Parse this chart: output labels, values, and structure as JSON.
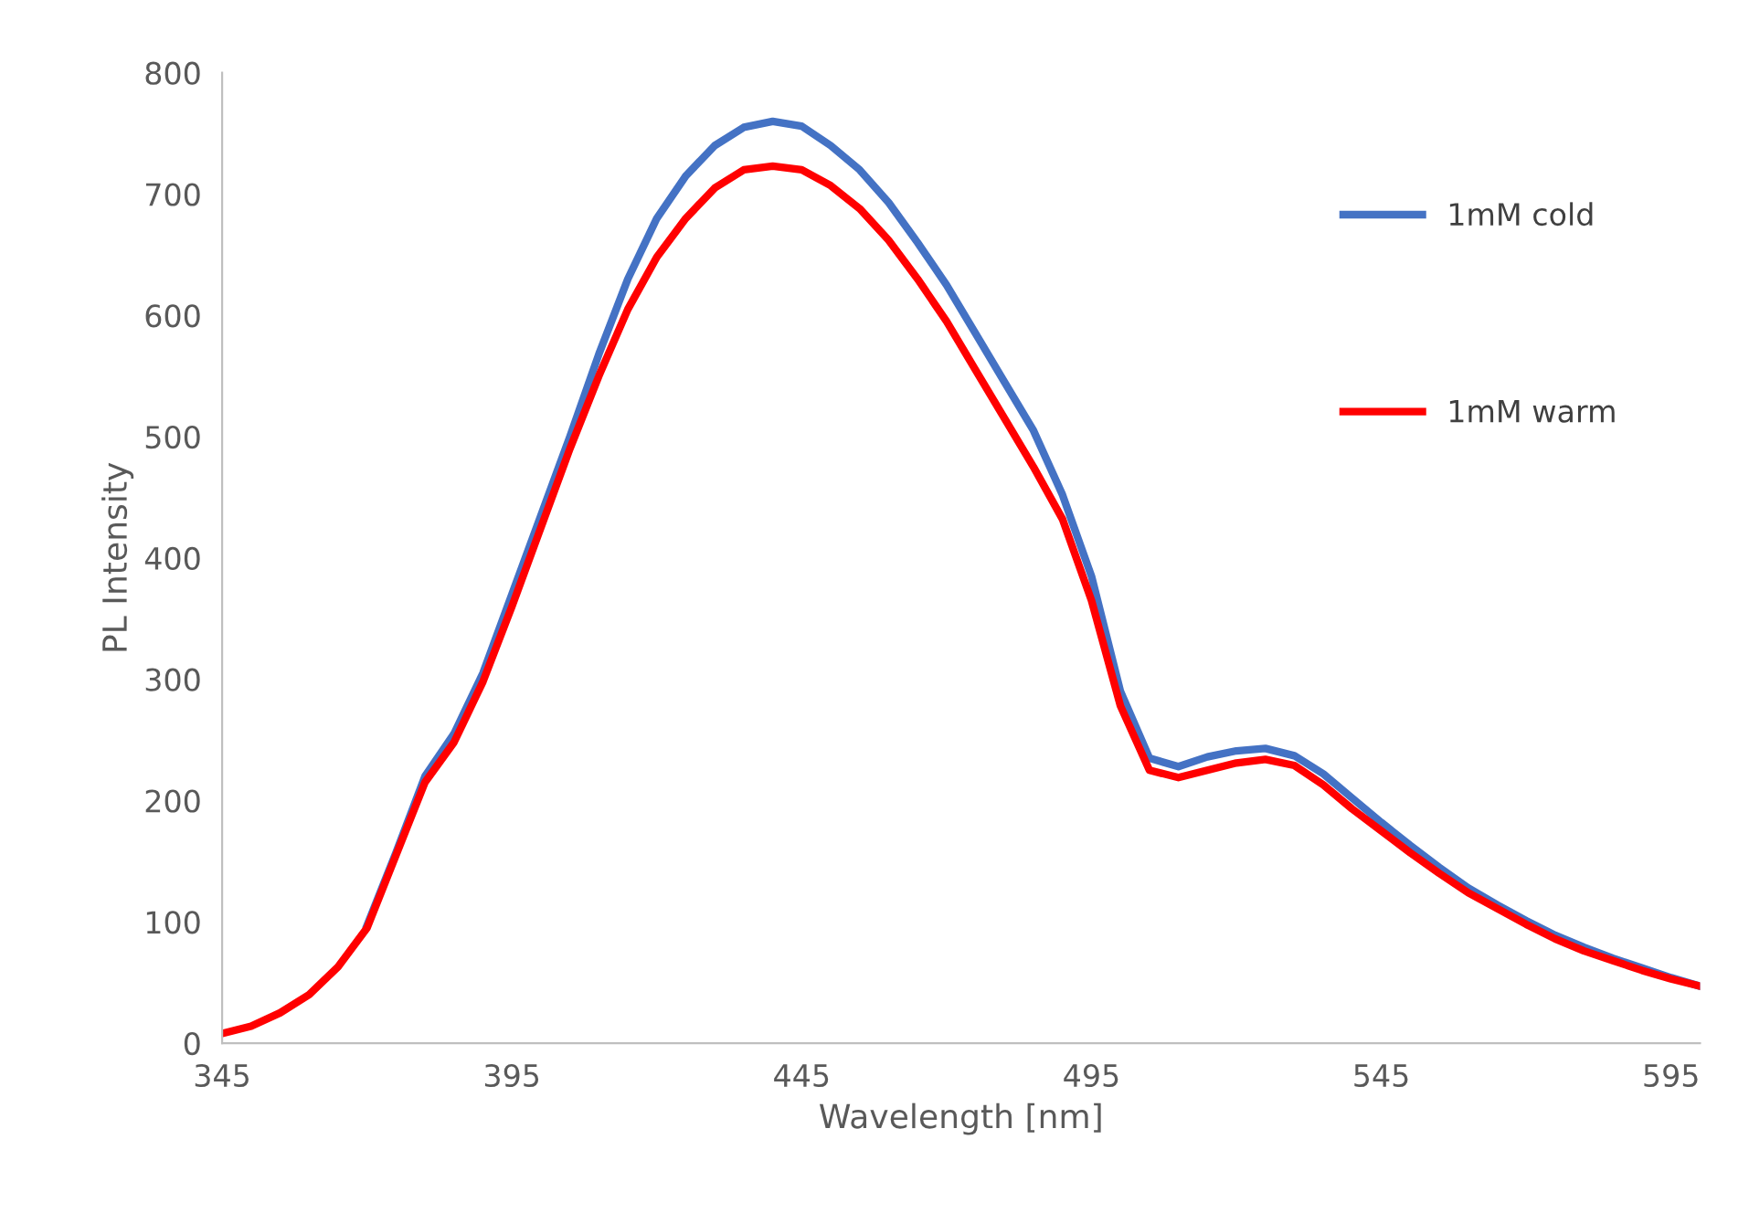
{
  "chart_data": {
    "type": "line",
    "xlabel": "Wavelength [nm]",
    "ylabel": "PL Intensity",
    "x": [
      345,
      350,
      355,
      360,
      365,
      370,
      375,
      380,
      385,
      390,
      395,
      400,
      405,
      410,
      415,
      420,
      425,
      430,
      435,
      440,
      445,
      450,
      455,
      460,
      465,
      470,
      475,
      480,
      485,
      490,
      495,
      500,
      505,
      510,
      515,
      520,
      525,
      530,
      535,
      540,
      545,
      550,
      555,
      560,
      565,
      570,
      575,
      580,
      585,
      590,
      595,
      600
    ],
    "series": [
      {
        "name": "1mM cold",
        "color": "#4472c4",
        "values": [
          null,
          null,
          null,
          null,
          null,
          97,
          157,
          220,
          255,
          305,
          370,
          435,
          500,
          568,
          630,
          680,
          715,
          740,
          755,
          760,
          756,
          740,
          720,
          693,
          660,
          625,
          585,
          545,
          505,
          452,
          385,
          290,
          235,
          228,
          236,
          241,
          243,
          237,
          222,
          202,
          182,
          163,
          145,
          128,
          114,
          101,
          89,
          79,
          70,
          62,
          54,
          47
        ]
      },
      {
        "name": "1mM warm",
        "color": "#ff0000",
        "values": [
          8,
          14,
          25,
          40,
          63,
          95,
          155,
          215,
          248,
          298,
          360,
          425,
          490,
          550,
          605,
          648,
          680,
          705,
          720,
          723,
          720,
          707,
          688,
          662,
          630,
          595,
          555,
          515,
          475,
          432,
          365,
          278,
          225,
          219,
          225,
          231,
          234,
          229,
          213,
          193,
          175,
          157,
          140,
          124,
          111,
          98,
          86,
          76,
          68,
          60,
          53,
          47
        ]
      }
    ],
    "xlim": [
      345,
      600
    ],
    "xticks": [
      345,
      395,
      445,
      495,
      545,
      595
    ],
    "ylim": [
      0,
      800
    ],
    "yticks": [
      0,
      100,
      200,
      300,
      400,
      500,
      600,
      700,
      800
    ],
    "grid": false,
    "legend": "right",
    "marker": "none",
    "line_style": "solid"
  }
}
